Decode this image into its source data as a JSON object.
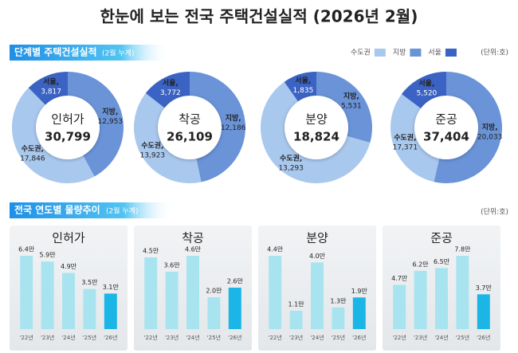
{
  "title": "한눈에 보는 전국 주택건설실적 (2026년 2월)",
  "sections": [
    {
      "title": "단계별 주택건설실적",
      "subtitle": "(2월 누계)",
      "unit": "(단위:호)",
      "legend": [
        {
          "name": "수도권",
          "color": "#a9c8ee"
        },
        {
          "name": "지방",
          "color": "#6a93d8"
        },
        {
          "name": "서울",
          "color": "#3b63c4"
        }
      ]
    },
    {
      "title": "전국 연도별 물량추이",
      "subtitle": "(2월 누계)",
      "unit": "(단위:호)"
    }
  ],
  "chart_data": [
    {
      "type": "donut",
      "title": "인허가",
      "total": 30799,
      "total_label": "30,799",
      "categories": [
        "서울,",
        "지방,",
        "수도권,"
      ],
      "values": [
        3817,
        12953,
        17846
      ],
      "value_labels": [
        "3,817",
        "12,953",
        "17,846"
      ],
      "colors": [
        "#3b63c4",
        "#6a93d8",
        "#a9c8ee"
      ]
    },
    {
      "type": "donut",
      "title": "착공",
      "total": 26109,
      "total_label": "26,109",
      "categories": [
        "서울,",
        "지방,",
        "수도권,"
      ],
      "values": [
        3772,
        12186,
        13923
      ],
      "value_labels": [
        "3,772",
        "12,186",
        "13,923"
      ],
      "colors": [
        "#3b63c4",
        "#6a93d8",
        "#a9c8ee"
      ]
    },
    {
      "type": "donut",
      "title": "분양",
      "total": 18824,
      "total_label": "18,824",
      "categories": [
        "서울,",
        "지방,",
        "수도권,"
      ],
      "values": [
        1835,
        5531,
        13293
      ],
      "value_labels": [
        "1,835",
        "5,531",
        "13,293"
      ],
      "colors": [
        "#3b63c4",
        "#6a93d8",
        "#a9c8ee"
      ]
    },
    {
      "type": "donut",
      "title": "준공",
      "total": 37404,
      "total_label": "37,404",
      "categories": [
        "서울,",
        "지방,",
        "수도권,"
      ],
      "values": [
        5520,
        20033,
        17371
      ],
      "value_labels": [
        "5,520",
        "20,033",
        "17,371"
      ],
      "colors": [
        "#3b63c4",
        "#6a93d8",
        "#a9c8ee"
      ]
    },
    {
      "type": "bar",
      "title": "인허가",
      "categories": [
        "'22년",
        "'23년",
        "'24년",
        "'25년",
        "'26년"
      ],
      "values": [
        6.4,
        5.9,
        4.9,
        3.5,
        3.1
      ],
      "value_labels": [
        "6.4만",
        "5.9만",
        "4.9만",
        "3.5만",
        "3.1만"
      ],
      "colors": [
        "#a8e4f0",
        "#a8e4f0",
        "#a8e4f0",
        "#a8e4f0",
        "#1bb6e6"
      ]
    },
    {
      "type": "bar",
      "title": "착공",
      "categories": [
        "'22년",
        "'23년",
        "'24년",
        "'25년",
        "'26년"
      ],
      "values": [
        4.5,
        3.6,
        4.6,
        2.0,
        2.6
      ],
      "value_labels": [
        "4.5만",
        "3.6만",
        "4.6만",
        "2.0만",
        "2.6만"
      ],
      "colors": [
        "#a8e4f0",
        "#a8e4f0",
        "#a8e4f0",
        "#a8e4f0",
        "#1bb6e6"
      ]
    },
    {
      "type": "bar",
      "title": "분양",
      "categories": [
        "'22년",
        "'23년",
        "'24년",
        "'25년",
        "'26년"
      ],
      "values": [
        4.4,
        1.1,
        4.0,
        1.3,
        1.9
      ],
      "value_labels": [
        "4.4만",
        "1.1만",
        "4.0만",
        "1.3만",
        "1.9만"
      ],
      "colors": [
        "#a8e4f0",
        "#a8e4f0",
        "#a8e4f0",
        "#a8e4f0",
        "#1bb6e6"
      ]
    },
    {
      "type": "bar",
      "title": "준공",
      "categories": [
        "'22년",
        "'23년",
        "'24년",
        "'25년",
        "'26년"
      ],
      "values": [
        4.7,
        6.2,
        6.5,
        7.8,
        3.7
      ],
      "value_labels": [
        "4.7만",
        "6.2만",
        "6.5만",
        "7.8만",
        "3.7만"
      ],
      "colors": [
        "#a8e4f0",
        "#a8e4f0",
        "#a8e4f0",
        "#a8e4f0",
        "#1bb6e6"
      ]
    }
  ]
}
